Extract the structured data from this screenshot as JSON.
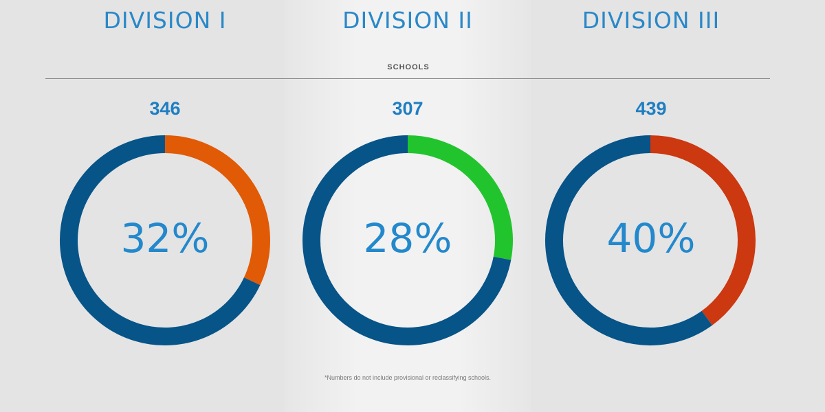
{
  "chart_data": [
    {
      "type": "pie",
      "title": "DIVISION I",
      "count": "346",
      "percent_label": "32%",
      "values": [
        32,
        68
      ],
      "colors": [
        "#e15a05",
        "#065488"
      ]
    },
    {
      "type": "pie",
      "title": "DIVISION II",
      "count": "307",
      "percent_label": "28%",
      "values": [
        28,
        72
      ],
      "colors": [
        "#22c42e",
        "#065488"
      ]
    },
    {
      "type": "pie",
      "title": "DIVISION III",
      "count": "439",
      "percent_label": "40%",
      "values": [
        40,
        60
      ],
      "colors": [
        "#cc3810",
        "#065488"
      ]
    }
  ],
  "section_label": "SCHOOLS",
  "footnote": "*Numbers do not include provisional or reclassifying schools."
}
